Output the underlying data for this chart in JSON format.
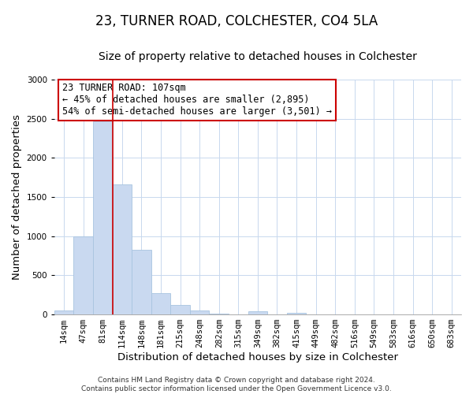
{
  "title": "23, TURNER ROAD, COLCHESTER, CO4 5LA",
  "subtitle": "Size of property relative to detached houses in Colchester",
  "xlabel": "Distribution of detached houses by size in Colchester",
  "ylabel": "Number of detached properties",
  "bar_labels": [
    "14sqm",
    "47sqm",
    "81sqm",
    "114sqm",
    "148sqm",
    "181sqm",
    "215sqm",
    "248sqm",
    "282sqm",
    "315sqm",
    "349sqm",
    "382sqm",
    "415sqm",
    "449sqm",
    "482sqm",
    "516sqm",
    "549sqm",
    "583sqm",
    "616sqm",
    "650sqm",
    "683sqm"
  ],
  "bar_values": [
    55,
    1000,
    2470,
    1660,
    830,
    270,
    120,
    50,
    10,
    5,
    40,
    5,
    20,
    0,
    0,
    0,
    0,
    0,
    0,
    0,
    0
  ],
  "bar_color": "#c9d9f0",
  "bar_edge_color": "#a8c4e0",
  "vline_x": 2.5,
  "vline_color": "#cc0000",
  "annotation_line1": "23 TURNER ROAD: 107sqm",
  "annotation_line2": "← 45% of detached houses are smaller (2,895)",
  "annotation_line3": "54% of semi-detached houses are larger (3,501) →",
  "annotation_box_color": "white",
  "annotation_box_edge": "#cc0000",
  "ylim": [
    0,
    3000
  ],
  "yticks": [
    0,
    500,
    1000,
    1500,
    2000,
    2500,
    3000
  ],
  "footer": "Contains HM Land Registry data © Crown copyright and database right 2024.\nContains public sector information licensed under the Open Government Licence v3.0.",
  "title_fontsize": 12,
  "subtitle_fontsize": 10,
  "axis_label_fontsize": 9.5,
  "tick_fontsize": 7.5,
  "annotation_fontsize": 8.5,
  "footer_fontsize": 6.5
}
